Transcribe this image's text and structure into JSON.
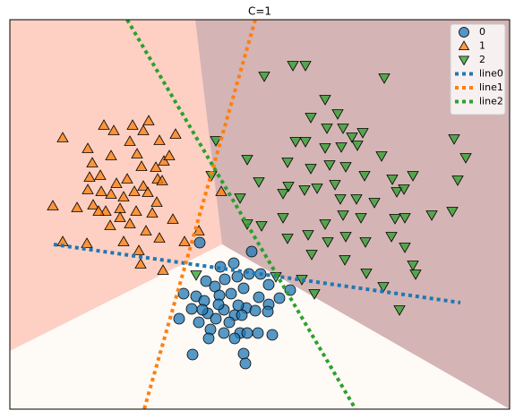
{
  "chart_data": {
    "type": "scatter",
    "title": "C=1",
    "xlim": [
      11,
      569
    ],
    "ylim": [
      457,
      22
    ],
    "legend": "upper right",
    "regions": [
      {
        "color": "#fdd0c3",
        "x": [
          11,
          218,
          248,
          11
        ],
        "y": [
          22,
          22,
          273,
          392
        ]
      },
      {
        "color": "#d4b4b5",
        "x": [
          218,
          569,
          569,
          248
        ],
        "y": [
          22,
          22,
          457,
          273
        ]
      },
      {
        "color": "#fefaf6",
        "x": [
          11,
          248,
          569,
          11
        ],
        "y": [
          392,
          273,
          457,
          457
        ]
      }
    ],
    "series": [
      {
        "name": "0",
        "color": "#1f77b4",
        "marker": "circle",
        "x": [
          223,
          281,
          246,
          261,
          278,
          291,
          300,
          265,
          251,
          230,
          240,
          205,
          219,
          228,
          245,
          258,
          272,
          289,
          300,
          312,
          324,
          214,
          232,
          250,
          262,
          275,
          285,
          299,
          200,
          222,
          241,
          256,
          270,
          235,
          250,
          268,
          288,
          304,
          233,
          262,
          276,
          215,
          272,
          274,
          226,
          244,
          266
        ],
        "y": [
          271,
          281,
          298,
          294,
          306,
          306,
          318,
          309,
          312,
          314,
          320,
          328,
          331,
          336,
          330,
          328,
          322,
          332,
          340,
          333,
          324,
          345,
          350,
          346,
          352,
          344,
          347,
          348,
          356,
          360,
          356,
          360,
          352,
          368,
          372,
          372,
          372,
          374,
          378,
          378,
          372,
          396,
          395,
          406,
          346,
          340,
          341
        ]
      },
      {
        "name": "1",
        "color": "#ff7f0e",
        "marker": "triangle-up",
        "x": [
          70,
          98,
          116,
          127,
          148,
          160,
          166,
          178,
          196,
          103,
          124,
          145,
          153,
          158,
          174,
          183,
          189,
          100,
          112,
          130,
          142,
          160,
          176,
          98,
          113,
          124,
          138,
          150,
          165,
          181,
          59,
          86,
          104,
          118,
          134,
          152,
          170,
          193,
          70,
          97,
          123,
          145,
          163,
          178,
          138,
          155,
          157,
          182,
          206,
          222,
          247,
          134,
          110,
          175
        ],
        "y": [
          154,
          166,
          140,
          146,
          140,
          146,
          135,
          157,
          150,
          182,
          174,
          158,
          172,
          186,
          187,
          180,
          174,
          198,
          196,
          205,
          200,
          208,
          200,
          212,
          214,
          217,
          220,
          214,
          215,
          202,
          230,
          232,
          229,
          236,
          233,
          236,
          238,
          245,
          270,
          272,
          252,
          250,
          258,
          266,
          270,
          280,
          295,
          302,
          270,
          258,
          214,
          243,
          236,
          226
        ]
      },
      {
        "name": "2",
        "color": "#2ca02c",
        "marker": "triangle-down",
        "x": [
          295,
          327,
          341,
          429,
          363,
          377,
          347,
          365,
          383,
          405,
          393,
          330,
          341,
          363,
          381,
          399,
          241,
          276,
          321,
          347,
          368,
          386,
          426,
          507,
          520,
          236,
          289,
          322,
          340,
          354,
          374,
          407,
          438,
          461,
          268,
          316,
          380,
          398,
          418,
          443,
          451,
          511,
          276,
          292,
          316,
          344,
          363,
          383,
          403,
          441,
          452,
          482,
          505,
          321,
          348,
          366,
          386,
          408,
          437,
          452,
          385,
          409,
          461,
          464,
          337,
          351,
          428,
          446,
          219,
          308
        ],
        "y": [
          85,
          73,
          73,
          87,
          111,
          127,
          131,
          143,
          143,
          148,
          153,
          158,
          158,
          165,
          164,
          162,
          157,
          178,
          181,
          188,
          184,
          186,
          174,
          155,
          176,
          196,
          203,
          208,
          212,
          210,
          206,
          196,
          200,
          196,
          221,
          216,
          222,
          222,
          226,
          214,
          211,
          201,
          250,
          252,
          243,
          262,
          250,
          240,
          243,
          244,
          243,
          240,
          236,
          266,
          284,
          270,
          264,
          270,
          264,
          276,
          290,
          305,
          296,
          306,
          312,
          328,
          320,
          346,
          307,
          309
        ]
      }
    ],
    "lines": [
      {
        "name": "line0",
        "color": "#1f77b4",
        "x": [
          60,
          514
        ],
        "y": [
          273,
          338
        ]
      },
      {
        "name": "line1",
        "color": "#ff7f0e",
        "x": [
          285,
          161
        ],
        "y": [
          22,
          457
        ]
      },
      {
        "name": "line2",
        "color": "#2ca02c",
        "x": [
          142,
          397
        ],
        "y": [
          22,
          457
        ]
      }
    ]
  }
}
